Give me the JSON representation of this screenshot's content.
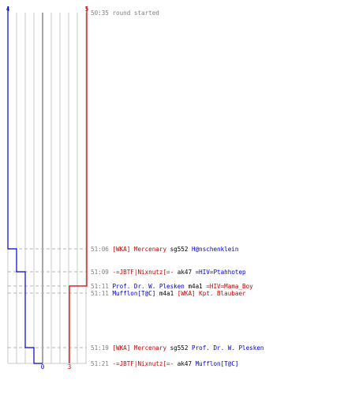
{
  "colors": {
    "background": "#ffffff",
    "grid": "#c8c8c8",
    "zero_line": "#808080",
    "dash": "#b4b4b4",
    "team_blue": "#0000cc",
    "team_red": "#cc0000",
    "time_text": "#808080"
  },
  "score": {
    "blue_start": "4",
    "red_start": "5",
    "zero": "0",
    "red_end": "3"
  },
  "events": [
    {
      "time": "50:35",
      "text": "round started",
      "start": true
    },
    {
      "time": "51:06",
      "killer": "[WKA] Mercenary",
      "killer_team": "red",
      "weapon": "sg552",
      "victim": "H@nschenklein",
      "victim_team": "blue"
    },
    {
      "time": "51:09",
      "killer": "-=JBTF|Nixnutz[=-",
      "killer_team": "red",
      "weapon": "ak47",
      "victim": "=HIV=Ptahhotep",
      "victim_team": "blue"
    },
    {
      "time": "51:11",
      "killer": "Prof. Dr. W. Plesken",
      "killer_team": "blue",
      "weapon": "m4a1",
      "victim": "=HIV=Mama_Boy",
      "victim_team": "red"
    },
    {
      "time": "51:11",
      "killer": "Mufflon[T@C]",
      "killer_team": "blue",
      "weapon": "m4a1",
      "victim": "[WKA] Kpt. Blaubaer",
      "victim_team": "red"
    },
    {
      "time": "51:19",
      "killer": "[WKA] Mercenary",
      "killer_team": "red",
      "weapon": "sg552",
      "victim": "Prof. Dr. W. Plesken",
      "victim_team": "blue"
    },
    {
      "time": "51:21",
      "killer": "-=JBTF|Nixnutz[=-",
      "killer_team": "red",
      "weapon": "ak47",
      "victim": "Mufflon[T@C]",
      "victim_team": "blue"
    }
  ],
  "chart_data": {
    "type": "line",
    "series": [
      {
        "team": "blue",
        "x": [
          "50:35",
          "51:06",
          "51:09",
          "51:19",
          "51:21"
        ],
        "y": [
          4,
          3,
          2,
          1,
          0
        ]
      },
      {
        "team": "red",
        "x": [
          "50:35",
          "51:11",
          "51:11"
        ],
        "y": [
          5,
          4,
          3
        ]
      }
    ],
    "ylim": [
      0,
      5
    ],
    "grid": true
  }
}
